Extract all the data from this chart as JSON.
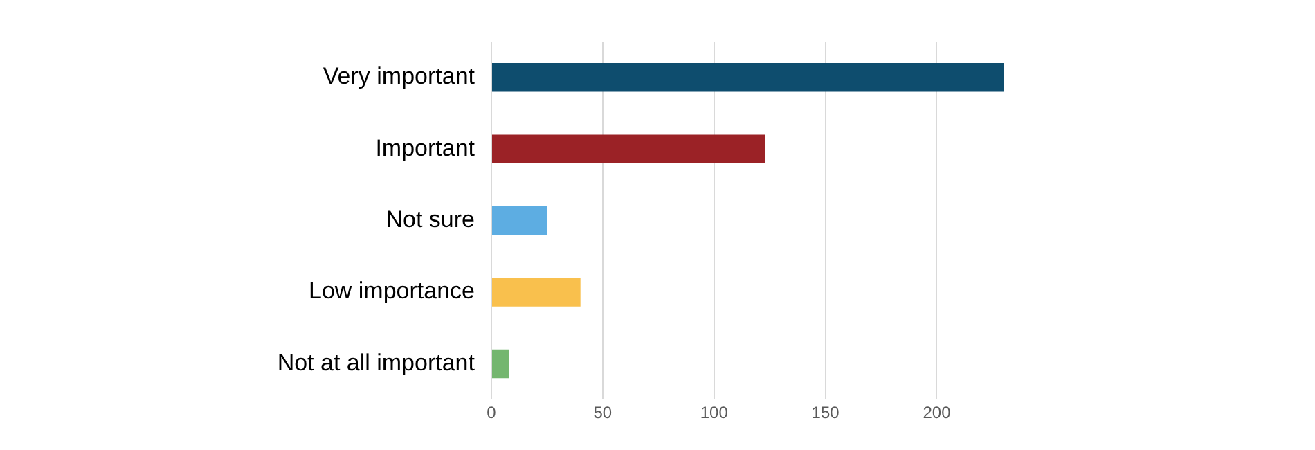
{
  "chart_data": {
    "type": "bar",
    "orientation": "horizontal",
    "categories": [
      "Very important",
      "Important",
      "Not sure",
      "Low importance",
      "Not at all important"
    ],
    "values": [
      230,
      123,
      25,
      40,
      8
    ],
    "colors": [
      "#0e4d6e",
      "#9b2226",
      "#5dade2",
      "#f9c04d",
      "#74b66f"
    ],
    "xlim": [
      0,
      230
    ],
    "xticks": [
      0,
      50,
      100,
      150,
      200
    ],
    "grid": "x",
    "legend": false
  }
}
